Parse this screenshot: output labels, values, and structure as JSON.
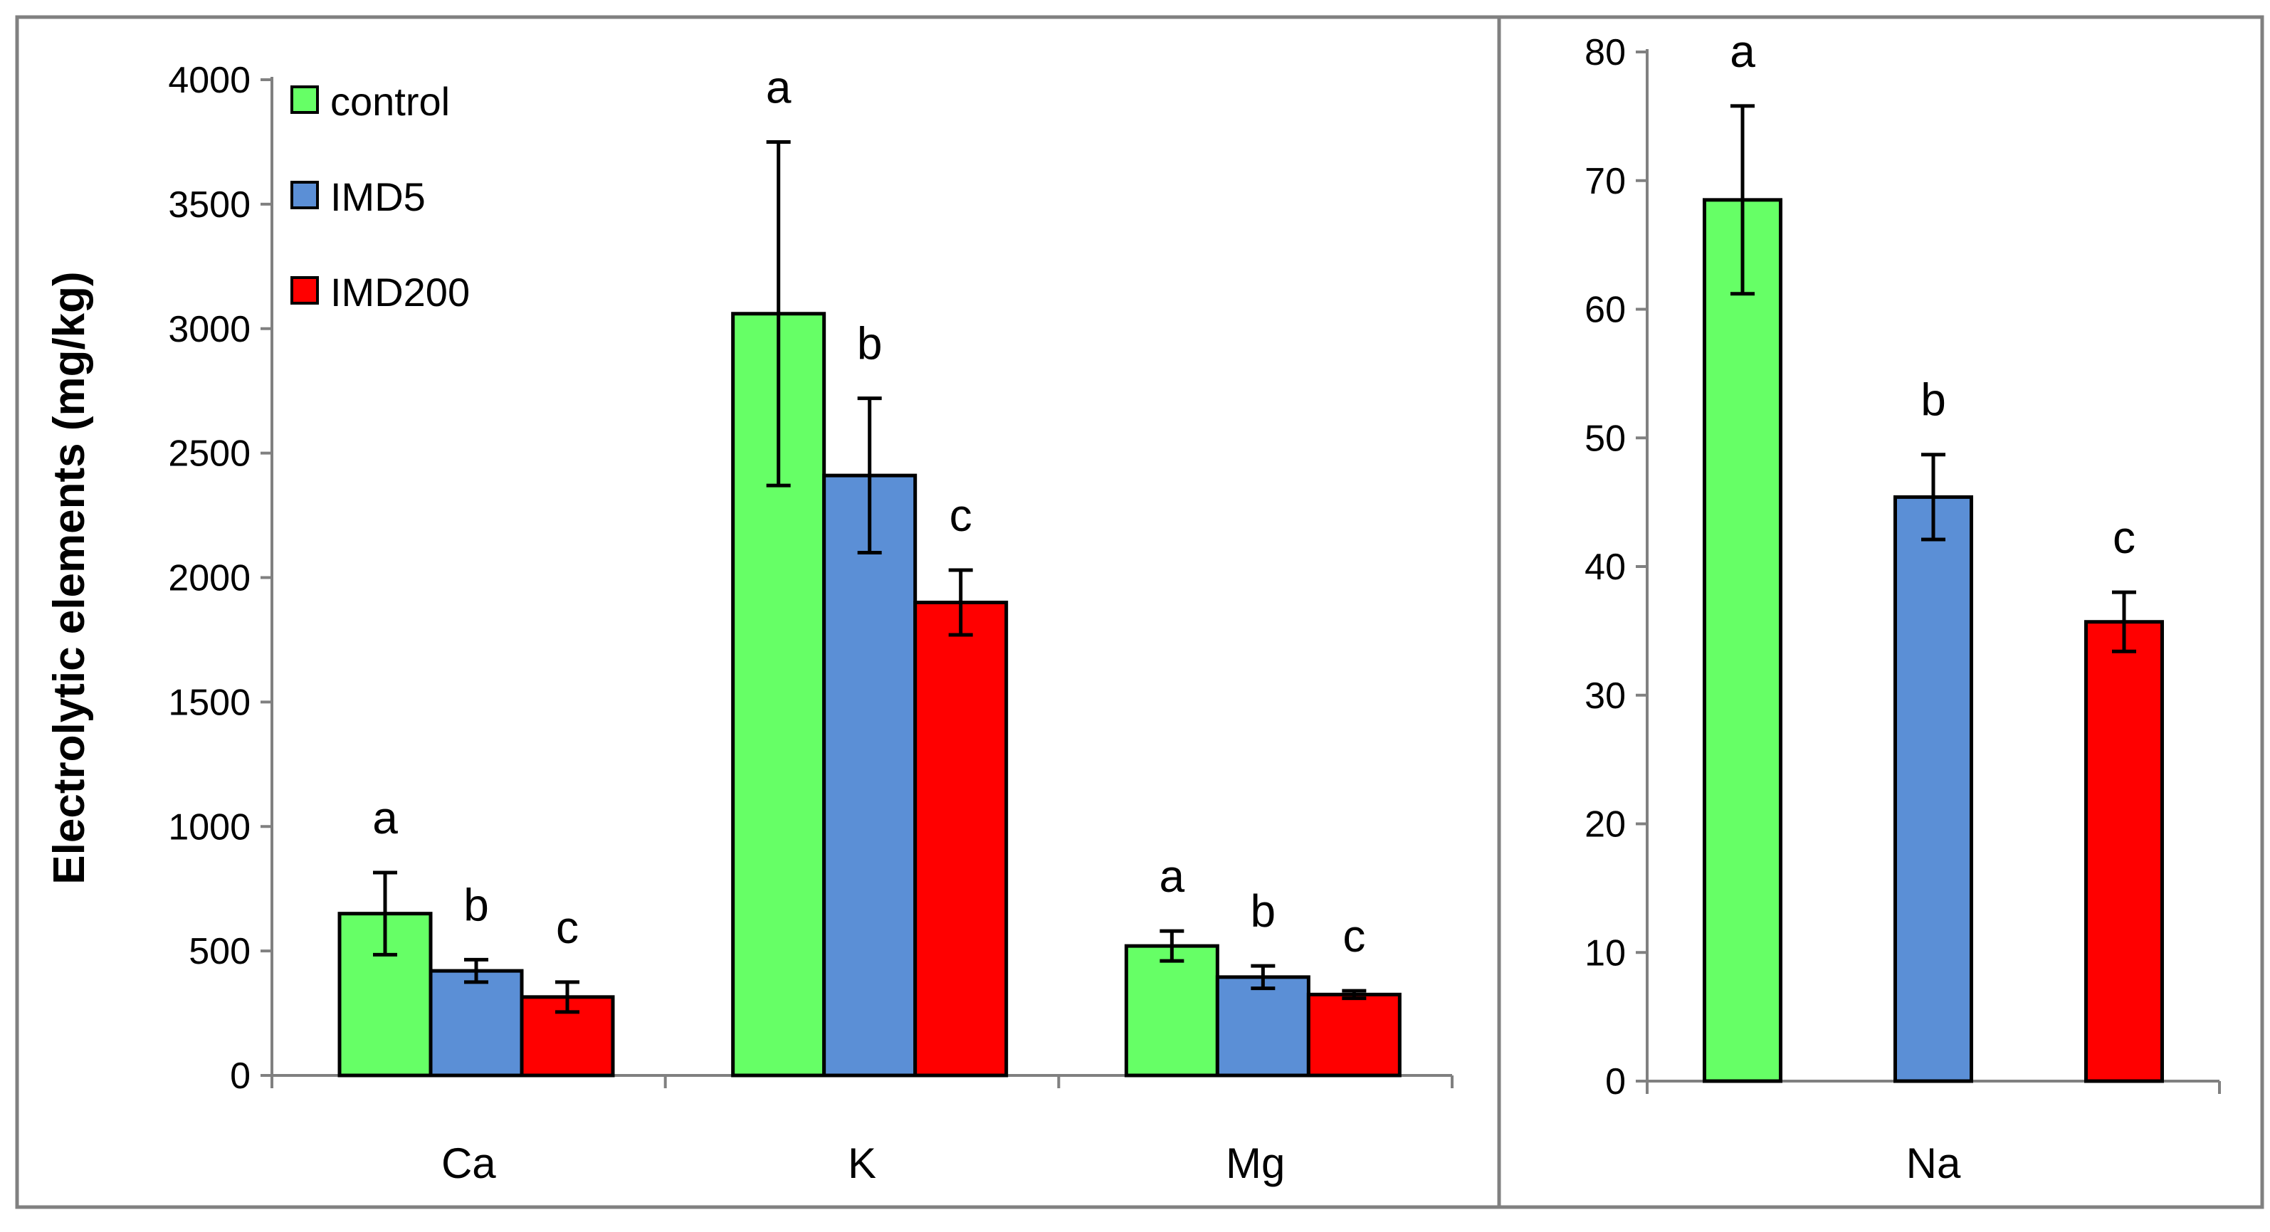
{
  "chart_data": [
    {
      "type": "bar",
      "ylabel": "Electrolytic elements (mg/kg)",
      "ylim": [
        0,
        4000
      ],
      "yticks": [
        0,
        500,
        1000,
        1500,
        2000,
        2500,
        3000,
        3500,
        4000
      ],
      "categories": [
        "Ca",
        "K",
        "Mg"
      ],
      "legend": {
        "position": "top-left",
        "entries": [
          "control",
          "IMD5",
          "IMD200"
        ]
      },
      "series": [
        {
          "name": "control",
          "color": "#66ff66",
          "values": [
            650,
            3060,
            520
          ],
          "errors": [
            165,
            690,
            60
          ],
          "letters": [
            "a",
            "a",
            "a"
          ]
        },
        {
          "name": "IMD5",
          "color": "#5b8fd6",
          "values": [
            420,
            2410,
            395
          ],
          "errors": [
            45,
            310,
            45
          ],
          "letters": [
            "b",
            "b",
            "b"
          ]
        },
        {
          "name": "IMD200",
          "color": "#ff0000",
          "values": [
            315,
            1900,
            325
          ],
          "errors": [
            60,
            130,
            15
          ],
          "letters": [
            "c",
            "c",
            "c"
          ]
        }
      ]
    },
    {
      "type": "bar",
      "ylim": [
        0,
        80
      ],
      "yticks": [
        0,
        10,
        20,
        30,
        40,
        50,
        60,
        70,
        80
      ],
      "categories": [
        "Na"
      ],
      "series": [
        {
          "name": "control",
          "color": "#66ff66",
          "values": [
            68.5
          ],
          "errors": [
            7.3
          ],
          "letters": [
            "a"
          ]
        },
        {
          "name": "IMD5",
          "color": "#5b8fd6",
          "values": [
            45.4
          ],
          "errors": [
            3.3
          ],
          "letters": [
            "b"
          ]
        },
        {
          "name": "IMD200",
          "color": "#ff0000",
          "values": [
            35.7
          ],
          "errors": [
            2.3
          ],
          "letters": [
            "c"
          ]
        }
      ]
    }
  ]
}
